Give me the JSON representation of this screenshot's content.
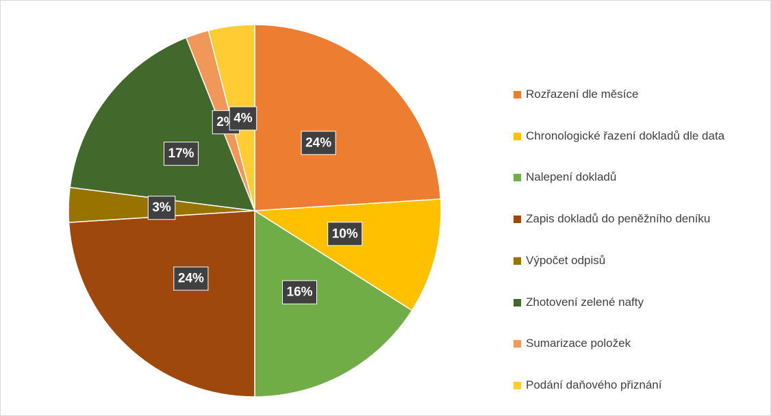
{
  "chart_data": {
    "type": "pie",
    "categories": [
      "Rozřazení dle měsíce",
      "Chronologické řazení dokladů dle data",
      "Nalepení dokladů",
      "Zapis dokladů do peněžního deníku",
      "Výpočet odpisů",
      "Zhotovení zelené nafty",
      "Sumarizace položek",
      "Podání daňového přiznání"
    ],
    "values": [
      24,
      10,
      16,
      24,
      3,
      17,
      2,
      4
    ],
    "value_labels": [
      "24%",
      "10%",
      "16%",
      "24%",
      "3%",
      "17%",
      "2%",
      "4%"
    ],
    "colors": [
      "#ED7D31",
      "#FFC000",
      "#70AD47",
      "#9E480E",
      "#997300",
      "#43682B",
      "#F1975A",
      "#FFCD33"
    ],
    "legend": "right"
  }
}
